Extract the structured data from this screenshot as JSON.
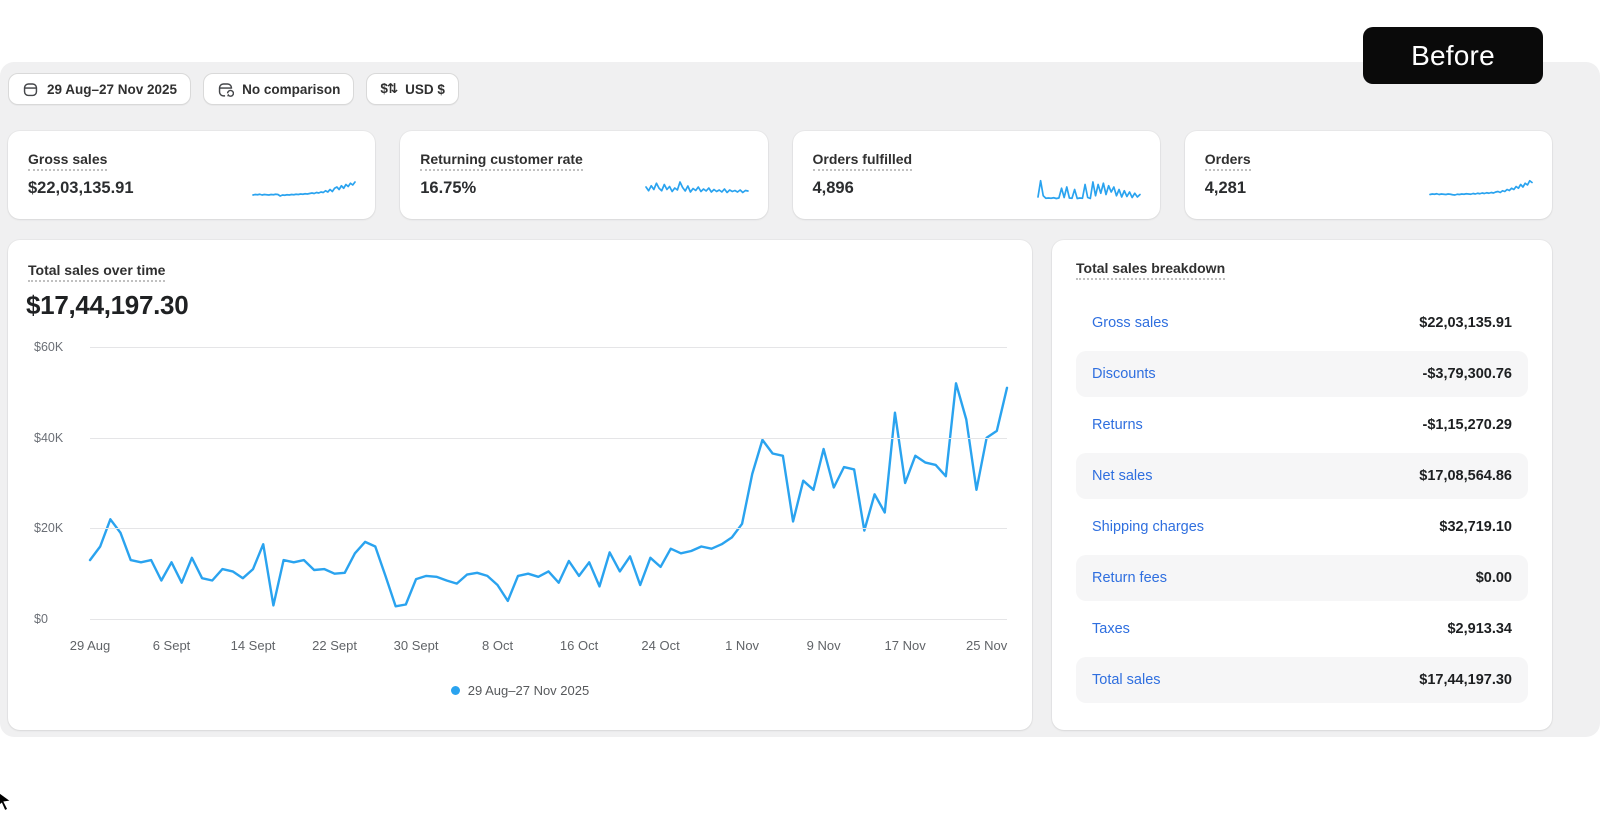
{
  "badge": {
    "label": "Before"
  },
  "colors": {
    "accent": "#2aa3ef",
    "link": "#2f6fdf"
  },
  "toolbar": {
    "date_range": {
      "label": "29 Aug–27 Nov 2025",
      "icon": "calendar-icon"
    },
    "comparison": {
      "label": "No comparison",
      "icon": "compare-calendar-icon"
    },
    "currency": {
      "label": "USD $",
      "icon": "currency-exchange-icon",
      "icon_glyph": "$⇅"
    }
  },
  "metrics": [
    {
      "label": "Gross sales",
      "value": "$22,03,135.91",
      "spark": [
        28,
        30,
        29,
        31,
        28,
        30,
        29,
        28,
        30,
        29,
        31,
        30,
        24,
        28,
        27,
        29,
        28,
        30,
        29,
        31,
        30,
        32,
        31,
        33,
        32,
        34,
        36,
        34,
        38,
        36,
        40,
        38,
        45,
        40,
        50,
        42,
        55,
        60,
        50,
        65,
        55,
        70,
        62,
        75,
        68,
        80
      ]
    },
    {
      "label": "Returning customer rate",
      "value": "16.75%",
      "spark": [
        60,
        45,
        65,
        50,
        75,
        55,
        45,
        70,
        50,
        62,
        42,
        56,
        48,
        80,
        58,
        44,
        64,
        40,
        54,
        46,
        60,
        42,
        52,
        44,
        56,
        40,
        50,
        42,
        48,
        40,
        52,
        38,
        48,
        42,
        46,
        40,
        48,
        38,
        46,
        44
      ]
    },
    {
      "label": "Orders fulfilled",
      "value": "4,896",
      "spark": [
        20,
        85,
        25,
        15,
        16,
        15,
        17,
        14,
        16,
        55,
        18,
        60,
        16,
        15,
        50,
        14,
        16,
        15,
        70,
        18,
        14,
        80,
        25,
        70,
        35,
        75,
        30,
        65,
        40,
        60,
        25,
        50,
        20,
        45,
        22,
        40,
        18,
        35,
        20,
        30
      ]
    },
    {
      "label": "Orders",
      "value": "4,281",
      "spark": [
        30,
        32,
        31,
        33,
        30,
        32,
        31,
        30,
        32,
        31,
        29,
        28,
        31,
        30,
        32,
        31,
        33,
        32,
        31,
        34,
        32,
        35,
        33,
        36,
        34,
        37,
        35,
        38,
        36,
        40,
        42,
        38,
        45,
        42,
        50,
        46,
        55,
        50,
        62,
        55,
        70,
        60,
        75,
        68,
        85,
        78
      ]
    }
  ],
  "chart_card": {
    "title": "Total sales over time",
    "total": "$17,44,197.30",
    "legend": "29 Aug–27 Nov 2025"
  },
  "chart_data": {
    "type": "line",
    "title": "Total sales over time",
    "series_name": "29 Aug–27 Nov 2025",
    "values_unit": "USD thousands (daily total sales)",
    "x_start": "29 Aug 2025",
    "x_end": "27 Nov 2025",
    "ylim": [
      0,
      60
    ],
    "grid": true,
    "legend_position": "bottom-center",
    "yticks": [
      {
        "label": "$0",
        "value": 0
      },
      {
        "label": "$20K",
        "value": 20
      },
      {
        "label": "$40K",
        "value": 40
      },
      {
        "label": "$60K",
        "value": 60
      }
    ],
    "xticks": [
      {
        "label": "29 Aug",
        "day": 0
      },
      {
        "label": "6 Sept",
        "day": 8
      },
      {
        "label": "14 Sept",
        "day": 16
      },
      {
        "label": "22 Sept",
        "day": 24
      },
      {
        "label": "30 Sept",
        "day": 32
      },
      {
        "label": "8 Oct",
        "day": 40
      },
      {
        "label": "16 Oct",
        "day": 48
      },
      {
        "label": "24 Oct",
        "day": 56
      },
      {
        "label": "1 Nov",
        "day": 64
      },
      {
        "label": "9 Nov",
        "day": 72
      },
      {
        "label": "17 Nov",
        "day": 80
      },
      {
        "label": "25 Nov",
        "day": 88
      }
    ],
    "values": [
      13,
      16,
      22,
      19,
      13,
      12.5,
      13,
      8.5,
      12.5,
      8,
      13.5,
      9,
      8.5,
      11,
      10.5,
      9,
      11,
      16.5,
      3,
      13,
      12.5,
      13,
      10.8,
      11,
      10,
      10.2,
      14.5,
      17,
      16,
      9.5,
      2.8,
      3.2,
      8.8,
      9.5,
      9.3,
      8.5,
      7.8,
      9.8,
      10.2,
      9.5,
      7.5,
      4,
      9.5,
      10,
      9.3,
      10.5,
      8,
      12.8,
      9.5,
      12.5,
      7.2,
      14.7,
      10.5,
      13.8,
      7.5,
      13.5,
      11.5,
      15.5,
      14.5,
      15,
      16,
      15.5,
      16.5,
      18,
      21,
      32,
      39.5,
      36.5,
      36,
      21.5,
      30.5,
      28.5,
      37.5,
      29,
      33.5,
      33,
      19.5,
      27.5,
      23.5,
      45.5,
      30,
      36,
      34.5,
      34,
      31.5,
      52,
      44,
      28.5,
      40,
      41.5,
      51
    ]
  },
  "breakdown": {
    "title": "Total sales breakdown",
    "rows": [
      {
        "label": "Gross sales",
        "value": "$22,03,135.91"
      },
      {
        "label": "Discounts",
        "value": "-$3,79,300.76"
      },
      {
        "label": "Returns",
        "value": "-$1,15,270.29"
      },
      {
        "label": "Net sales",
        "value": "$17,08,564.86"
      },
      {
        "label": "Shipping charges",
        "value": "$32,719.10"
      },
      {
        "label": "Return fees",
        "value": "$0.00"
      },
      {
        "label": "Taxes",
        "value": "$2,913.34"
      },
      {
        "label": "Total sales",
        "value": "$17,44,197.30"
      }
    ]
  }
}
